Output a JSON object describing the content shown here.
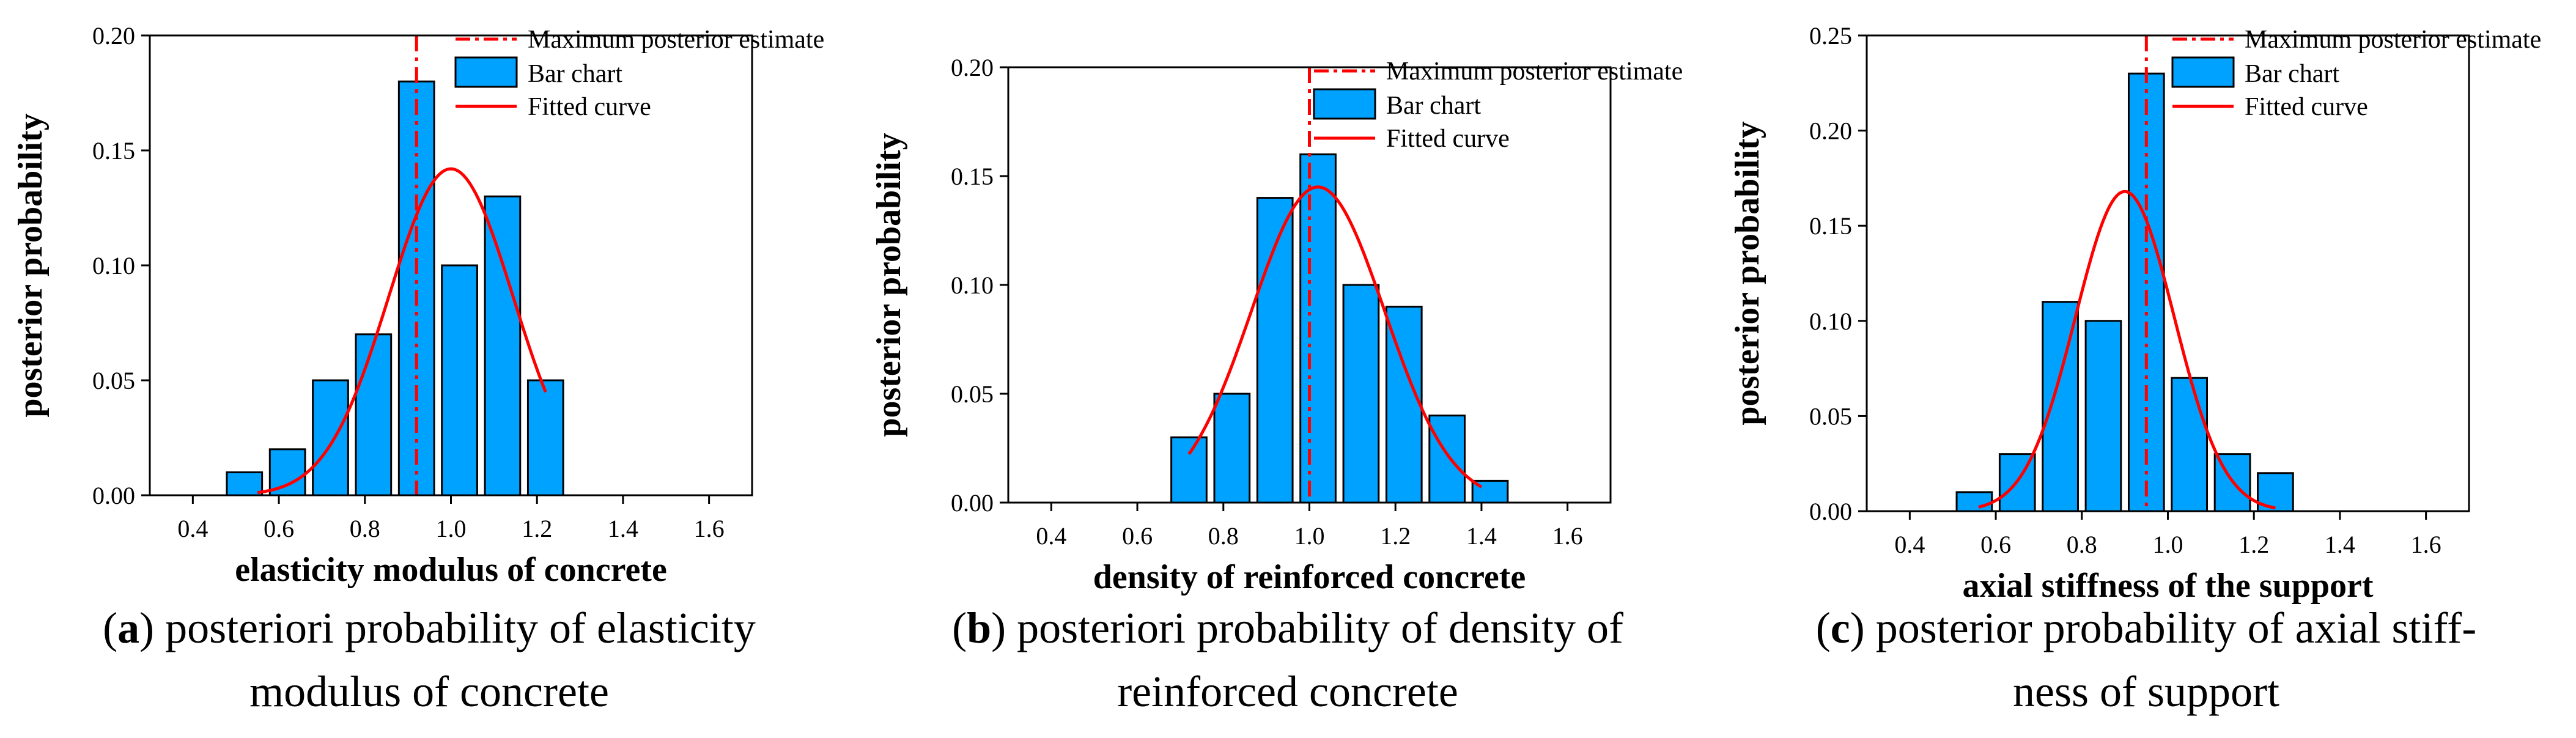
{
  "chart_data": [
    {
      "id": "a",
      "type": "bar",
      "xlabel": "elasticity modulus of concrete",
      "ylabel": "posterior probability",
      "xlim": [
        0.3,
        1.7
      ],
      "ylim": [
        0,
        0.2
      ],
      "xticks": [
        "0.4",
        "0.6",
        "0.8",
        "1.0",
        "1.2",
        "1.4",
        "1.6"
      ],
      "yticks": [
        "0.00",
        "0.05",
        "0.10",
        "0.15",
        "0.20"
      ],
      "x": [
        0.52,
        0.62,
        0.72,
        0.82,
        0.92,
        1.02,
        1.12,
        1.22
      ],
      "values": [
        0.01,
        0.02,
        0.05,
        0.07,
        0.18,
        0.1,
        0.13,
        0.05
      ],
      "map_estimate": 0.92,
      "fit": {
        "mean": 1.0,
        "sd": 0.145,
        "peak": 0.142,
        "range": [
          0.55,
          1.22
        ]
      },
      "legend": [
        "Maximum posterior estimate",
        "Bar chart",
        "Fitted curve"
      ],
      "caption_letter": "a",
      "caption_text": " posteriori probability of elasticity modulus of concrete",
      "caption_line1": "posteriori probability of elasticity",
      "caption_line2": "modulus of concrete"
    },
    {
      "id": "b",
      "type": "bar",
      "xlabel": "density of reinforced concrete",
      "ylabel": "posterior probability",
      "xlim": [
        0.3,
        1.7
      ],
      "ylim": [
        0,
        0.2
      ],
      "xticks": [
        "0.4",
        "0.6",
        "0.8",
        "1.0",
        "1.2",
        "1.4",
        "1.6"
      ],
      "yticks": [
        "0.00",
        "0.05",
        "0.10",
        "0.15",
        "0.20"
      ],
      "x": [
        0.72,
        0.82,
        0.92,
        1.02,
        1.12,
        1.22,
        1.32,
        1.42
      ],
      "values": [
        0.03,
        0.05,
        0.14,
        0.16,
        0.1,
        0.09,
        0.04,
        0.01
      ],
      "map_estimate": 1.0,
      "fit": {
        "mean": 1.02,
        "sd": 0.155,
        "peak": 0.145,
        "range": [
          0.72,
          1.4
        ]
      },
      "legend": [
        "Maximum posterior estimate",
        "Bar chart",
        "Fitted curve"
      ],
      "caption_letter": "b",
      "caption_line1": "posteriori probability of density of",
      "caption_line2": "reinforced concrete"
    },
    {
      "id": "c",
      "type": "bar",
      "xlabel": "axial stiffness of the support",
      "ylabel": "posterior probability",
      "xlim": [
        0.3,
        1.7
      ],
      "ylim": [
        0,
        0.25
      ],
      "xticks": [
        "0.4",
        "0.6",
        "0.8",
        "1.0",
        "1.2",
        "1.4",
        "1.6"
      ],
      "yticks": [
        "0.00",
        "0.05",
        "0.10",
        "0.15",
        "0.20",
        "0.25"
      ],
      "x": [
        0.55,
        0.65,
        0.75,
        0.85,
        0.95,
        1.05,
        1.15,
        1.25
      ],
      "values": [
        0.01,
        0.03,
        0.11,
        0.1,
        0.23,
        0.07,
        0.03,
        0.02
      ],
      "map_estimate": 0.95,
      "fit": {
        "mean": 0.9,
        "sd": 0.115,
        "peak": 0.168,
        "range": [
          0.56,
          1.25
        ]
      },
      "legend": [
        "Maximum posterior estimate",
        "Bar chart",
        "Fitted curve"
      ],
      "caption_letter": "c",
      "caption_line1": "posterior probability of axial stiff-",
      "caption_line2": "ness of support"
    }
  ],
  "colors": {
    "bar": "#00a2ff",
    "bar_edge": "#000000",
    "curve": "#ff0000",
    "map_line": "#ff0000"
  }
}
